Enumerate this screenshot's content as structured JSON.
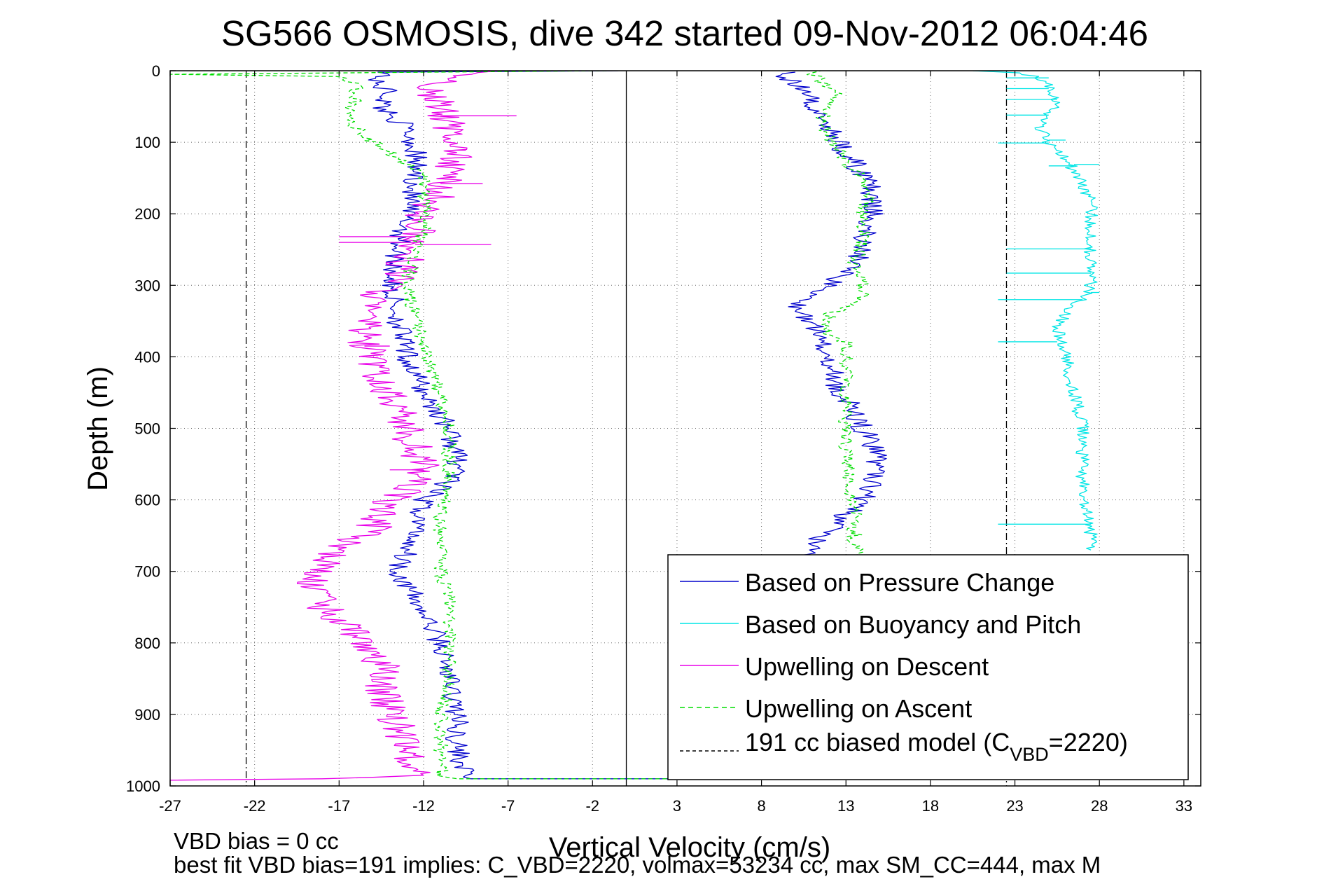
{
  "chart_data": {
    "type": "line",
    "title": "SG566 OSMOSIS, dive 342 started 09-Nov-2012 06:04:46",
    "xlabel": "Vertical Velocity (cm/s)",
    "ylabel": "Depth (m)",
    "xlim": [
      -27,
      34
    ],
    "ylim": [
      1000,
      0
    ],
    "xticks": [
      -27,
      -22,
      -17,
      -12,
      -7,
      -2,
      3,
      8,
      13,
      18,
      23,
      28,
      33
    ],
    "yticks": [
      0,
      100,
      200,
      300,
      400,
      500,
      600,
      700,
      800,
      900,
      1000
    ],
    "grid": true,
    "legend_position": "bottom-right",
    "footer_line1": "VBD bias = 0 cc",
    "footer_line2": "best fit VBD bias=191 implies: C_VBD=2220, volmax=53234 cc, max SM_CC=444, max M",
    "legend": {
      "based_on_pressure": "Based on Pressure Change",
      "based_on_buoyancy": "Based on Buoyancy and Pitch",
      "upwelling_descent": "Upwelling on Descent",
      "upwelling_ascent": "Upwelling on Ascent",
      "model_prefix": "191 cc biased model (C",
      "model_sub": "VBD",
      "model_suffix": "=2220)"
    },
    "vertical_lines": [
      {
        "name": "zero-line",
        "x": 0,
        "style": "solid"
      },
      {
        "name": "model-descent",
        "x": -22.5,
        "style": "dash-dot"
      },
      {
        "name": "model-ascent",
        "x": 22.5,
        "style": "dash-dot"
      }
    ],
    "series": [
      {
        "name": "Based on Pressure Change",
        "color": "#0000cc",
        "style": "solid",
        "noise": 0.7,
        "points": [
          [
            -0.5,
            0
          ],
          [
            -14,
            2
          ],
          [
            -15,
            15
          ],
          [
            -14,
            30
          ],
          [
            -14.5,
            50
          ],
          [
            -13,
            80
          ],
          [
            -12.5,
            110
          ],
          [
            -12.5,
            150
          ],
          [
            -13,
            200
          ],
          [
            -13.5,
            250
          ],
          [
            -14,
            300
          ],
          [
            -13.5,
            350
          ],
          [
            -13,
            400
          ],
          [
            -12,
            450
          ],
          [
            -10.5,
            500
          ],
          [
            -9.8,
            560
          ],
          [
            -12,
            600
          ],
          [
            -12.5,
            650
          ],
          [
            -13.5,
            700
          ],
          [
            -12,
            760
          ],
          [
            -11,
            800
          ],
          [
            -10.5,
            850
          ],
          [
            -10,
            900
          ],
          [
            -10,
            950
          ],
          [
            -9.5,
            985
          ],
          [
            -9.2,
            990
          ],
          [
            9.6,
            990
          ],
          [
            10,
            970
          ],
          [
            10.5,
            930
          ],
          [
            10.8,
            900
          ],
          [
            11,
            850
          ],
          [
            11,
            800
          ],
          [
            10,
            750
          ],
          [
            10.2,
            700
          ],
          [
            10.8,
            670
          ],
          [
            12.5,
            630
          ],
          [
            14,
            600
          ],
          [
            15,
            560
          ],
          [
            14.5,
            520
          ],
          [
            13.5,
            480
          ],
          [
            12.5,
            440
          ],
          [
            12,
            400
          ],
          [
            11.2,
            360
          ],
          [
            10.2,
            330
          ],
          [
            12,
            300
          ],
          [
            13.5,
            270
          ],
          [
            14,
            240
          ],
          [
            14.5,
            200
          ],
          [
            14.5,
            160
          ],
          [
            13.5,
            130
          ],
          [
            12.5,
            100
          ],
          [
            12,
            70
          ],
          [
            11,
            45
          ],
          [
            10.5,
            25
          ],
          [
            9.5,
            8
          ],
          [
            10,
            2
          ]
        ]
      },
      {
        "name": "Based on Buoyancy and Pitch",
        "color": "#00e5e5",
        "style": "solid",
        "noise": 0.4,
        "points": [
          [
            20.5,
            0
          ],
          [
            23.5,
            3
          ],
          [
            25,
            15
          ],
          [
            25.5,
            40
          ],
          [
            25,
            60
          ],
          [
            24.5,
            80
          ],
          [
            25,
            100
          ],
          [
            26,
            120
          ],
          [
            26.5,
            140
          ],
          [
            27.5,
            180
          ],
          [
            27.5,
            220
          ],
          [
            27.5,
            260
          ],
          [
            27.5,
            300
          ],
          [
            27,
            320
          ],
          [
            26,
            340
          ],
          [
            25.5,
            360
          ],
          [
            26,
            400
          ],
          [
            26.5,
            450
          ],
          [
            27,
            500
          ],
          [
            27,
            550
          ],
          [
            27,
            600
          ],
          [
            27.5,
            650
          ],
          [
            27.5,
            670
          ]
        ],
        "spikes": [
          [
            22.5,
            10
          ],
          [
            22.5,
            25
          ],
          [
            22.5,
            40
          ],
          [
            22.5,
            62
          ],
          [
            22,
            101
          ],
          [
            26,
            97
          ],
          [
            25,
            133
          ],
          [
            28,
            131
          ],
          [
            22.5,
            249
          ],
          [
            22.5,
            283
          ],
          [
            22,
            320
          ],
          [
            28,
            310
          ],
          [
            22,
            379
          ],
          [
            22,
            634
          ]
        ]
      },
      {
        "name": "Upwelling on Descent",
        "color": "#e800e8",
        "style": "solid",
        "noise": 1.1,
        "points": [
          [
            -7.5,
            0
          ],
          [
            -9,
            5
          ],
          [
            -11,
            15
          ],
          [
            -11.5,
            30
          ],
          [
            -11,
            50
          ],
          [
            -10.5,
            80
          ],
          [
            -10,
            110
          ],
          [
            -10.5,
            140
          ],
          [
            -11,
            170
          ],
          [
            -12,
            200
          ],
          [
            -12.5,
            230
          ],
          [
            -13,
            260
          ],
          [
            -13.5,
            290
          ],
          [
            -15,
            320
          ],
          [
            -15.5,
            350
          ],
          [
            -15.5,
            380
          ],
          [
            -15,
            410
          ],
          [
            -14.5,
            440
          ],
          [
            -13.5,
            470
          ],
          [
            -13,
            500
          ],
          [
            -12.5,
            530
          ],
          [
            -12,
            560
          ],
          [
            -12.5,
            580
          ],
          [
            -14,
            600
          ],
          [
            -14.5,
            620
          ],
          [
            -15,
            640
          ],
          [
            -16.5,
            660
          ],
          [
            -17.5,
            680
          ],
          [
            -18.5,
            700
          ],
          [
            -18.5,
            730
          ],
          [
            -17.5,
            760
          ],
          [
            -16,
            790
          ],
          [
            -15,
            810
          ],
          [
            -14.5,
            830
          ],
          [
            -14.5,
            860
          ],
          [
            -14,
            890
          ],
          [
            -13.5,
            920
          ],
          [
            -13,
            950
          ],
          [
            -12.5,
            975
          ],
          [
            -12,
            985
          ],
          [
            -15,
            988
          ],
          [
            -18,
            990
          ],
          [
            -27,
            992
          ]
        ],
        "spikes": [
          [
            -6.5,
            63
          ],
          [
            -9.5,
            111
          ],
          [
            -8.5,
            158
          ],
          [
            -17,
            232
          ],
          [
            -8,
            243
          ],
          [
            -17,
            240
          ],
          [
            -14,
            385
          ],
          [
            -14,
            558
          ]
        ]
      },
      {
        "name": "Upwelling on Ascent",
        "color": "#00dd00",
        "style": "dashed",
        "noise": 0.45,
        "points": [
          [
            -1.5,
            0
          ],
          [
            -27,
            5
          ],
          [
            -17,
            8
          ],
          [
            -16,
            20
          ],
          [
            -16,
            40
          ],
          [
            -16.5,
            60
          ],
          [
            -16,
            80
          ],
          [
            -15,
            100
          ],
          [
            -13,
            130
          ],
          [
            -12,
            150
          ],
          [
            -12,
            180
          ],
          [
            -12,
            220
          ],
          [
            -12.5,
            260
          ],
          [
            -13,
            300
          ],
          [
            -12.5,
            340
          ],
          [
            -12,
            380
          ],
          [
            -11.5,
            420
          ],
          [
            -11,
            460
          ],
          [
            -10.5,
            500
          ],
          [
            -10.5,
            540
          ],
          [
            -10.5,
            580
          ],
          [
            -11,
            620
          ],
          [
            -11,
            660
          ],
          [
            -11,
            700
          ],
          [
            -10.5,
            740
          ],
          [
            -10.5,
            780
          ],
          [
            -10.5,
            820
          ],
          [
            -10.5,
            860
          ],
          [
            -11,
            900
          ],
          [
            -11,
            950
          ],
          [
            -11,
            985
          ],
          [
            -10,
            990
          ],
          [
            22,
            990
          ],
          [
            13.5,
            660
          ],
          [
            13.5,
            620
          ],
          [
            13.3,
            580
          ],
          [
            13,
            540
          ],
          [
            13,
            500
          ],
          [
            13,
            460
          ],
          [
            13,
            430
          ],
          [
            13,
            400
          ],
          [
            13,
            380
          ],
          [
            12,
            370
          ],
          [
            12,
            340
          ],
          [
            13,
            330
          ],
          [
            14,
            320
          ],
          [
            14,
            300
          ],
          [
            13.5,
            270
          ],
          [
            14,
            240
          ],
          [
            14,
            200
          ],
          [
            14.5,
            170
          ],
          [
            14,
            150
          ],
          [
            13,
            130
          ],
          [
            12.5,
            110
          ],
          [
            12,
            90
          ],
          [
            11.5,
            70
          ],
          [
            12,
            50
          ],
          [
            12.5,
            30
          ],
          [
            11.5,
            15
          ],
          [
            11,
            3
          ],
          [
            11.5,
            0
          ]
        ]
      }
    ]
  }
}
